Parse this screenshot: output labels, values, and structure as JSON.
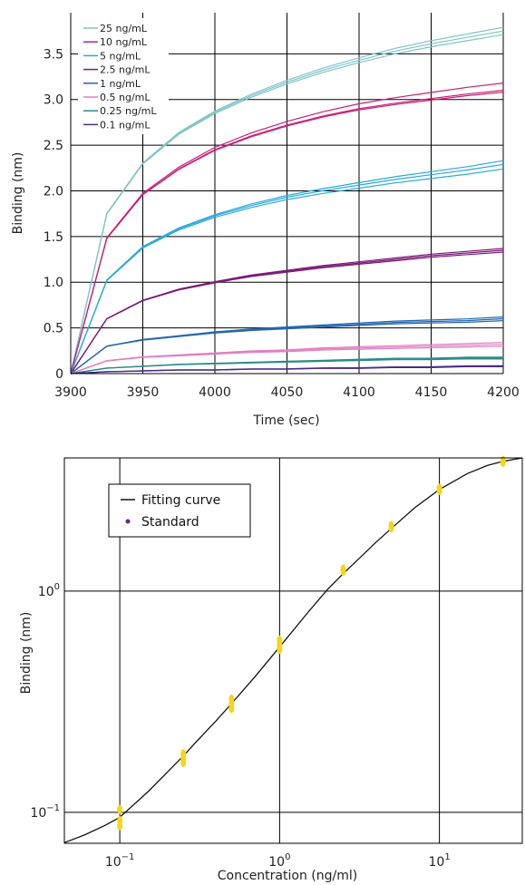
{
  "chart_data": [
    {
      "type": "line",
      "xlabel": "Time (sec)",
      "ylabel": "Binding (nm)",
      "xlim": [
        3900,
        4200
      ],
      "ylim": [
        0,
        3.95
      ],
      "x_ticks": [
        "3900",
        "3950",
        "4000",
        "4050",
        "4100",
        "4150",
        "4200"
      ],
      "y_ticks": [
        "0",
        "0.5",
        "1.0",
        "1.5",
        "2.0",
        "2.5",
        "3.0",
        "3.5"
      ],
      "x_tick_values": [
        3900,
        3950,
        4000,
        4050,
        4100,
        4150,
        4200
      ],
      "y_tick_values": [
        0,
        0.5,
        1.0,
        1.5,
        2.0,
        2.5,
        3.0,
        3.5
      ],
      "grid": true,
      "legend_position": "top-left",
      "x": [
        3900,
        3925,
        3950,
        3975,
        4000,
        4025,
        4050,
        4075,
        4100,
        4125,
        4150,
        4175,
        4200
      ],
      "series": [
        {
          "name": "25 ng/mL",
          "color": "#7fc4c9",
          "values": [
            0.0,
            1.75,
            2.3,
            2.63,
            2.86,
            3.04,
            3.19,
            3.32,
            3.43,
            3.53,
            3.61,
            3.68,
            3.75
          ],
          "replicate_offsets": [
            0.04,
            0.0,
            -0.04
          ]
        },
        {
          "name": "10 ng/mL",
          "color": "#c81e7a",
          "values": [
            0.0,
            1.48,
            1.96,
            2.24,
            2.45,
            2.6,
            2.72,
            2.82,
            2.9,
            2.96,
            3.01,
            3.06,
            3.1
          ],
          "replicate_offsets": [
            0.08,
            0.0,
            -0.02
          ]
        },
        {
          "name": "5 ng/mL",
          "color": "#2aa9dc",
          "values": [
            0.0,
            1.02,
            1.38,
            1.58,
            1.72,
            1.83,
            1.92,
            1.99,
            2.05,
            2.11,
            2.16,
            2.21,
            2.27
          ],
          "replicate_offsets": [
            0.06,
            0.02,
            -0.03
          ]
        },
        {
          "name": "2.5 ng/mL",
          "color": "#7a1b78",
          "values": [
            0.0,
            0.6,
            0.8,
            0.92,
            1.0,
            1.07,
            1.12,
            1.17,
            1.21,
            1.25,
            1.29,
            1.32,
            1.35
          ],
          "replicate_offsets": [
            0.02,
            0.0,
            -0.02
          ]
        },
        {
          "name": "1 ng/mL",
          "color": "#2366b0",
          "values": [
            0.0,
            0.3,
            0.37,
            0.41,
            0.45,
            0.48,
            0.5,
            0.52,
            0.54,
            0.56,
            0.57,
            0.58,
            0.6
          ],
          "replicate_offsets": [
            0.02,
            0.0,
            -0.02
          ]
        },
        {
          "name": "0.5 ng/mL",
          "color": "#e07fc0",
          "values": [
            0.0,
            0.14,
            0.18,
            0.2,
            0.22,
            0.24,
            0.25,
            0.27,
            0.28,
            0.29,
            0.3,
            0.31,
            0.32
          ],
          "replicate_offsets": [
            0.02,
            0.0,
            -0.02
          ]
        },
        {
          "name": "0.25 ng/mL",
          "color": "#2f8a8a",
          "values": [
            0.0,
            0.06,
            0.08,
            0.1,
            0.11,
            0.12,
            0.13,
            0.14,
            0.15,
            0.16,
            0.16,
            0.17,
            0.17
          ],
          "replicate_offsets": [
            0.01,
            0.0,
            -0.01
          ]
        },
        {
          "name": "0.1 ng/mL",
          "color": "#4b2a8a",
          "values": [
            0.0,
            0.02,
            0.03,
            0.04,
            0.04,
            0.05,
            0.05,
            0.06,
            0.06,
            0.07,
            0.07,
            0.08,
            0.08
          ],
          "replicate_offsets": [
            0.005,
            0.0,
            -0.005
          ]
        }
      ]
    },
    {
      "type": "scatter",
      "xlabel": "Concentration (ng/ml)",
      "ylabel": "Binding (nm)",
      "x_scale": "log",
      "y_scale": "log",
      "xlim": [
        0.045,
        33
      ],
      "ylim": [
        0.0725,
        4.0
      ],
      "x_ticks": [
        {
          "base": "10",
          "exp": "−1",
          "value": 0.1
        },
        {
          "base": "10",
          "exp": "0",
          "value": 1
        },
        {
          "base": "10",
          "exp": "1",
          "value": 10
        }
      ],
      "y_ticks": [
        {
          "base": "10",
          "exp": "−1",
          "value": 0.1
        },
        {
          "base": "10",
          "exp": "0",
          "value": 1
        }
      ],
      "grid": true,
      "legend_position": "top-left",
      "legend": [
        {
          "label": "Fitting curve",
          "marker": "line",
          "color": "#111111"
        },
        {
          "label": "Standard",
          "marker": "dot",
          "color": "#5e2a84"
        }
      ],
      "fit_curve": {
        "color": "#111111",
        "x": [
          0.045,
          0.06,
          0.08,
          0.1,
          0.15,
          0.2,
          0.25,
          0.3,
          0.4,
          0.5,
          0.7,
          1.0,
          1.5,
          2.0,
          2.5,
          3.0,
          4.0,
          5.0,
          7.0,
          10.0,
          15.0,
          20.0,
          25.0,
          33.0
        ],
        "y": [
          0.073,
          0.079,
          0.087,
          0.095,
          0.124,
          0.153,
          0.18,
          0.208,
          0.259,
          0.31,
          0.41,
          0.56,
          0.8,
          1.02,
          1.2,
          1.36,
          1.66,
          1.92,
          2.38,
          2.88,
          3.4,
          3.7,
          3.86,
          4.0
        ]
      },
      "standard_points": {
        "color": "#f6d51a",
        "x": [
          0.1,
          0.1,
          0.1,
          0.25,
          0.25,
          0.25,
          0.5,
          0.5,
          0.5,
          1.0,
          1.0,
          1.0,
          2.5,
          2.5,
          5.0,
          5.0,
          10.0,
          10.0,
          25.0,
          25.0
        ],
        "y": [
          0.087,
          0.092,
          0.103,
          0.168,
          0.175,
          0.184,
          0.295,
          0.31,
          0.325,
          0.545,
          0.57,
          0.6,
          1.23,
          1.26,
          1.93,
          1.98,
          2.85,
          2.92,
          3.82,
          3.9
        ]
      }
    }
  ]
}
